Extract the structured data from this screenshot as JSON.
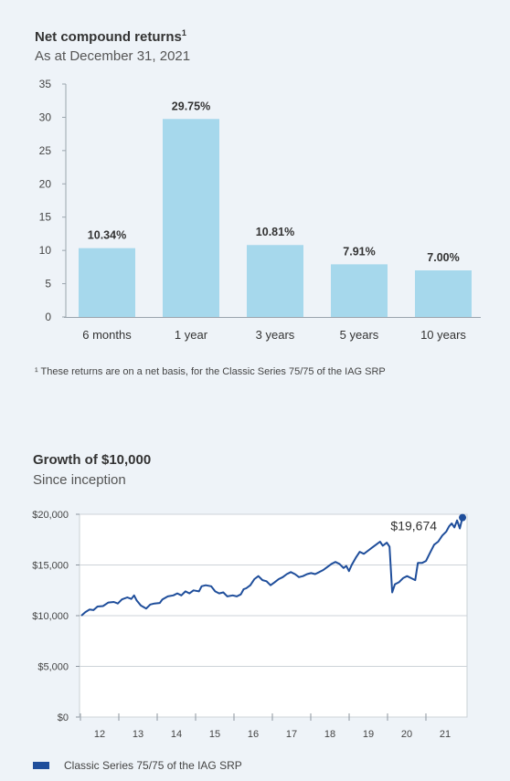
{
  "chart_data": [
    {
      "type": "bar",
      "title": "Net compound returns",
      "title_superscript": "1",
      "subtitle": "As at December 31, 2021",
      "categories": [
        "6 months",
        "1 year",
        "3 years",
        "5 years",
        "10 years"
      ],
      "values": [
        10.34,
        29.75,
        10.81,
        7.91,
        7.0
      ],
      "data_labels": [
        "10.34%",
        "29.75%",
        "10.81%",
        "7.91%",
        "7.00%"
      ],
      "yticks": [
        "0",
        "5",
        "10",
        "15",
        "20",
        "25",
        "30",
        "35"
      ],
      "ylim": [
        0,
        35
      ],
      "grid": false,
      "footnote": "¹  These returns are on a net basis, for the Classic Series 75/75 of the IAG SRP",
      "colors": {
        "bar": "#a6d8ec"
      }
    },
    {
      "type": "line",
      "title": "Growth of $10,000",
      "subtitle": "Since inception",
      "yticks": [
        "$0",
        "$5,000",
        "$10,000",
        "$15,000",
        "$20,000"
      ],
      "ylim": [
        0,
        20000
      ],
      "xticks": [
        "12",
        "13",
        "14",
        "15",
        "16",
        "17",
        "18",
        "19",
        "20",
        "21"
      ],
      "grid": true,
      "annotation": "$19,674",
      "legend_position": "bottom",
      "series": [
        {
          "name": "Classic Series 75/75 of the IAG SRP",
          "color": "#1f4e9b",
          "points": [
            [
              0.0,
              10000
            ],
            [
              0.15,
              10350
            ],
            [
              0.3,
              10600
            ],
            [
              0.45,
              10550
            ],
            [
              0.6,
              10900
            ],
            [
              0.8,
              10950
            ],
            [
              1.0,
              11300
            ],
            [
              1.2,
              11350
            ],
            [
              1.35,
              11200
            ],
            [
              1.5,
              11600
            ],
            [
              1.7,
              11800
            ],
            [
              1.85,
              11650
            ],
            [
              1.95,
              12000
            ],
            [
              2.05,
              11500
            ],
            [
              2.2,
              11000
            ],
            [
              2.4,
              10700
            ],
            [
              2.55,
              11100
            ],
            [
              2.7,
              11200
            ],
            [
              2.9,
              11250
            ],
            [
              3.0,
              11600
            ],
            [
              3.2,
              11900
            ],
            [
              3.4,
              12000
            ],
            [
              3.55,
              12200
            ],
            [
              3.7,
              12000
            ],
            [
              3.85,
              12400
            ],
            [
              4.0,
              12200
            ],
            [
              4.15,
              12500
            ],
            [
              4.35,
              12400
            ],
            [
              4.45,
              12900
            ],
            [
              4.6,
              13000
            ],
            [
              4.8,
              12900
            ],
            [
              4.95,
              12400
            ],
            [
              5.1,
              12200
            ],
            [
              5.25,
              12300
            ],
            [
              5.4,
              11900
            ],
            [
              5.6,
              12000
            ],
            [
              5.75,
              11900
            ],
            [
              5.9,
              12100
            ],
            [
              6.0,
              12600
            ],
            [
              6.1,
              12700
            ],
            [
              6.25,
              13000
            ],
            [
              6.4,
              13600
            ],
            [
              6.55,
              13900
            ],
            [
              6.7,
              13500
            ],
            [
              6.85,
              13400
            ],
            [
              7.0,
              13000
            ],
            [
              7.15,
              13300
            ],
            [
              7.3,
              13600
            ],
            [
              7.45,
              13800
            ],
            [
              7.6,
              14100
            ],
            [
              7.75,
              14300
            ],
            [
              7.9,
              14100
            ],
            [
              8.05,
              13800
            ],
            [
              8.2,
              13900
            ],
            [
              8.35,
              14100
            ],
            [
              8.5,
              14200
            ],
            [
              8.65,
              14100
            ],
            [
              8.8,
              14300
            ],
            [
              8.95,
              14500
            ],
            [
              9.1,
              14800
            ],
            [
              9.25,
              15100
            ],
            [
              9.4,
              15300
            ],
            [
              9.55,
              15100
            ],
            [
              9.7,
              14700
            ],
            [
              9.8,
              14900
            ],
            [
              9.9,
              14400
            ],
            [
              10.0,
              15000
            ],
            [
              10.15,
              15700
            ],
            [
              10.3,
              16300
            ],
            [
              10.45,
              16100
            ],
            [
              10.6,
              16400
            ],
            [
              10.75,
              16700
            ],
            [
              10.9,
              17000
            ],
            [
              11.05,
              17300
            ],
            [
              11.15,
              16900
            ],
            [
              11.3,
              17200
            ],
            [
              11.4,
              16800
            ],
            [
              11.5,
              12300
            ],
            [
              11.6,
              13100
            ],
            [
              11.75,
              13300
            ],
            [
              11.9,
              13700
            ],
            [
              12.05,
              13900
            ],
            [
              12.2,
              13700
            ],
            [
              12.35,
              13500
            ],
            [
              12.45,
              15200
            ],
            [
              12.6,
              15200
            ],
            [
              12.75,
              15400
            ],
            [
              12.9,
              16200
            ],
            [
              13.05,
              17000
            ],
            [
              13.2,
              17300
            ],
            [
              13.35,
              17900
            ],
            [
              13.5,
              18300
            ],
            [
              13.6,
              18800
            ],
            [
              13.7,
              19100
            ],
            [
              13.8,
              18700
            ],
            [
              13.9,
              19400
            ],
            [
              14.0,
              18600
            ],
            [
              14.1,
              19674
            ]
          ]
        }
      ]
    }
  ]
}
